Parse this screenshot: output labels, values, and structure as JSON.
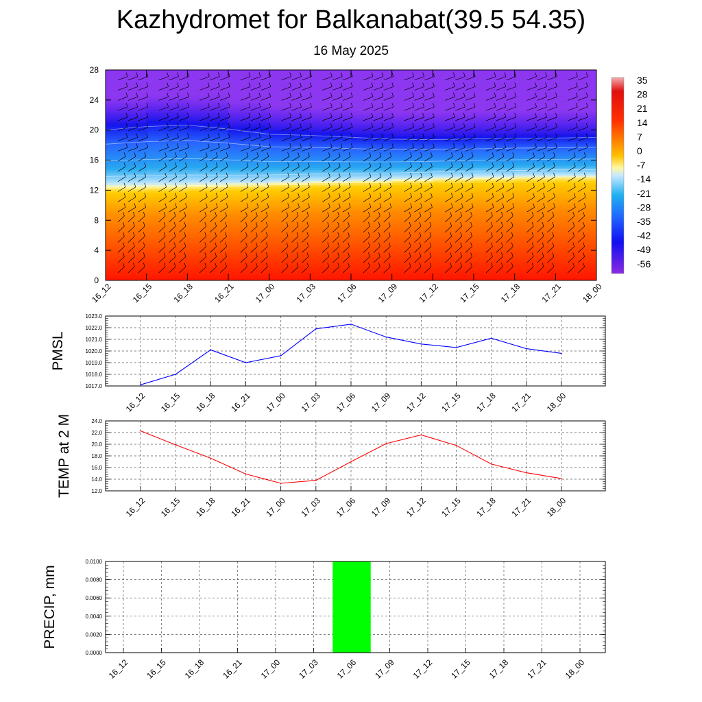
{
  "title": "Kazhydromet for Balkanabat(39.5 54.35)",
  "subtitle": "16 May 2025",
  "time_labels": [
    "16_12",
    "16_15",
    "16_18",
    "16_21",
    "17_00",
    "17_03",
    "17_06",
    "17_09",
    "17_12",
    "17_15",
    "17_18",
    "17_21",
    "18_00"
  ],
  "chart_data": [
    {
      "type": "heatmap",
      "id": "temperature-profile",
      "x": [
        "16_12",
        "16_15",
        "16_18",
        "16_21",
        "17_00",
        "17_03",
        "17_06",
        "17_09",
        "17_12",
        "17_15",
        "17_18",
        "17_21",
        "18_00"
      ],
      "ylim": [
        0,
        28
      ],
      "yticks": [
        0,
        4,
        8,
        12,
        16,
        20,
        24,
        28
      ],
      "colorbar_labels": [
        "35",
        "28",
        "21",
        "14",
        "7",
        "0",
        "-7",
        "-14",
        "-21",
        "-28",
        "-35",
        "-42",
        "-49",
        "-56"
      ],
      "freezing_level": [
        12.2,
        12.2,
        12.3,
        12.4,
        12.6,
        12.8,
        12.9,
        13.1,
        13.3,
        13.4,
        13.5,
        13.6,
        13.6
      ],
      "tropopause_level": [
        21.0,
        21.5,
        21.7,
        21.1,
        20.3,
        20.1,
        19.8,
        19.5,
        19.4,
        19.5,
        19.6,
        19.6,
        19.7
      ],
      "wind_barbs": true
    },
    {
      "type": "line",
      "id": "pmsl",
      "ylabel": "PMSL",
      "x": [
        "16_12",
        "16_15",
        "16_18",
        "16_21",
        "17_00",
        "17_03",
        "17_06",
        "17_09",
        "17_12",
        "17_15",
        "17_18",
        "17_21",
        "18_00"
      ],
      "values": [
        1017.1,
        1018.0,
        1020.1,
        1019.0,
        1019.6,
        1021.9,
        1022.3,
        1021.2,
        1020.6,
        1020.3,
        1021.1,
        1020.2,
        1019.8
      ],
      "ylim": [
        1017.0,
        1023.0
      ],
      "ytick_labels": [
        "1017.0",
        "1018.0",
        "1019.0",
        "1020.0",
        "1021.0",
        "1022.0",
        "1023.0"
      ],
      "color": "#0000ff",
      "grid": true
    },
    {
      "type": "line",
      "id": "temp-2m",
      "ylabel": "TEMP at 2 M",
      "x": [
        "16_12",
        "16_15",
        "16_18",
        "16_21",
        "17_00",
        "17_03",
        "17_06",
        "17_09",
        "17_12",
        "17_15",
        "17_18",
        "17_21",
        "18_00"
      ],
      "values": [
        22.3,
        19.9,
        17.6,
        14.9,
        13.3,
        13.8,
        17.0,
        20.1,
        21.6,
        19.8,
        16.6,
        15.1,
        14.1
      ],
      "ylim": [
        12.0,
        24.0
      ],
      "ytick_labels": [
        "12.0",
        "14.0",
        "16.0",
        "18.0",
        "20.0",
        "22.0",
        "24.0"
      ],
      "color": "#ff0000",
      "grid": true
    },
    {
      "type": "bar",
      "id": "precip",
      "ylabel": "PRECIP, mm",
      "categories": [
        "16_12",
        "16_15",
        "16_18",
        "16_21",
        "17_00",
        "17_03",
        "17_06",
        "17_09",
        "17_12",
        "17_15",
        "17_18",
        "17_21",
        "18_00"
      ],
      "values": [
        0,
        0,
        0,
        0,
        0,
        0,
        0.01,
        0,
        0,
        0,
        0,
        0,
        0
      ],
      "ylim": [
        0,
        0.01
      ],
      "ytick_labels": [
        "0.0000",
        "0.0020",
        "0.0040",
        "0.0060",
        "0.0080",
        "0.0100"
      ],
      "color": "#00ff00",
      "grid": true
    }
  ]
}
